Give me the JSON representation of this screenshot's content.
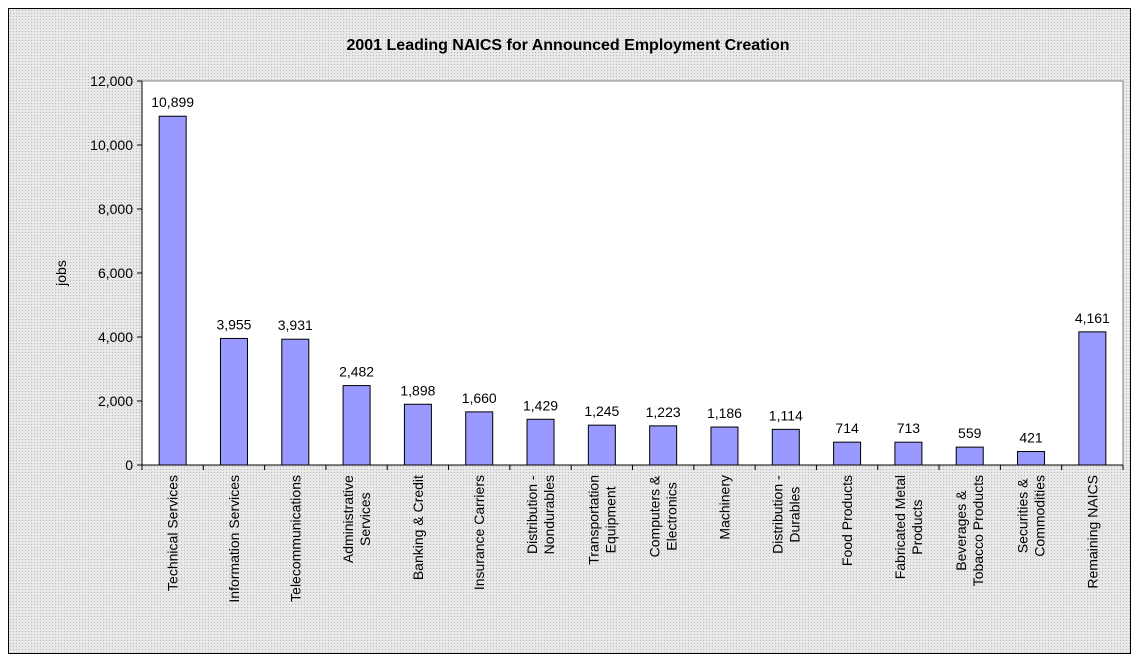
{
  "chart_data": {
    "type": "bar",
    "title": "2001 Leading NAICS for Announced Employment Creation",
    "xlabel": "",
    "ylabel": "jobs",
    "ylim": [
      0,
      12000
    ],
    "yticks": [
      0,
      2000,
      4000,
      6000,
      8000,
      10000,
      12000
    ],
    "ytick_labels": [
      "0",
      "2,000",
      "4,000",
      "6,000",
      "8,000",
      "10,000",
      "12,000"
    ],
    "grid": false,
    "legend": "none",
    "bar_color": "#9999ff",
    "categories": [
      "Technical Services",
      "Information Services",
      "Telecommunications",
      "Administrative Services",
      "Banking & Credit",
      "Insurance Carriers",
      "Distribution - Nondurables",
      "Transportation Equipment",
      "Computers & Electronics",
      "Machinery",
      "Distribution - Durables",
      "Food Products",
      "Fabricated Metal Products",
      "Beverages & Tobacco Products",
      "Securities & Commodities",
      "Remaining NAICS"
    ],
    "category_label_lines": [
      [
        "Technical Services"
      ],
      [
        "Information Services"
      ],
      [
        "Telecommunications"
      ],
      [
        "Administrative",
        "Services"
      ],
      [
        "Banking & Credit"
      ],
      [
        "Insurance Carriers"
      ],
      [
        "Distribution -",
        "Nondurables"
      ],
      [
        "Transportation",
        "Equipment"
      ],
      [
        "Computers &",
        "Electronics"
      ],
      [
        "Machinery"
      ],
      [
        "Distribution -",
        "Durables"
      ],
      [
        "Food Products"
      ],
      [
        "Fabricated Metal",
        "Products"
      ],
      [
        "Beverages &",
        "Tobacco Products"
      ],
      [
        "Securities &",
        "Commodities"
      ],
      [
        "Remaining NAICS"
      ]
    ],
    "values": [
      10899,
      3955,
      3931,
      2482,
      1898,
      1660,
      1429,
      1245,
      1223,
      1186,
      1114,
      714,
      713,
      559,
      421,
      4161
    ],
    "value_labels": [
      "10,899",
      "3,955",
      "3,931",
      "2,482",
      "1,898",
      "1,660",
      "1,429",
      "1,245",
      "1,223",
      "1,186",
      "1,114",
      "714",
      "713",
      "559",
      "421",
      "4,161"
    ]
  }
}
